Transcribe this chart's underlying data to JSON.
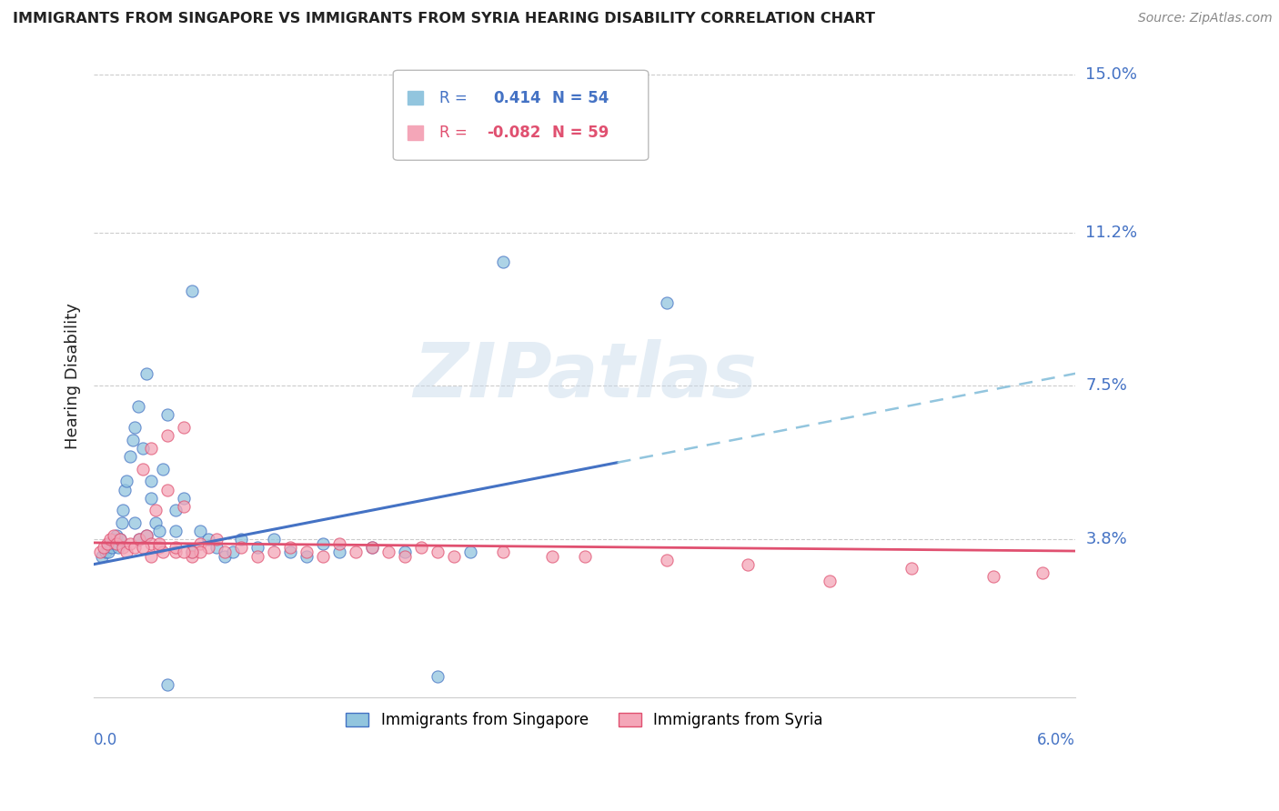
{
  "title": "IMMIGRANTS FROM SINGAPORE VS IMMIGRANTS FROM SYRIA HEARING DISABILITY CORRELATION CHART",
  "source": "Source: ZipAtlas.com",
  "ylabel": "Hearing Disability",
  "xlim": [
    0.0,
    6.0
  ],
  "ylim": [
    0.0,
    15.5
  ],
  "ytick_vals": [
    3.8,
    7.5,
    11.2,
    15.0
  ],
  "ytick_labels": [
    "3.8%",
    "7.5%",
    "11.2%",
    "15.0%"
  ],
  "series1_label": "Immigrants from Singapore",
  "series1_R": "0.414",
  "series1_N": "54",
  "series1_color": "#92c5de",
  "series1_line_color": "#4472c4",
  "series1_dash_color": "#92c5de",
  "series2_label": "Immigrants from Syria",
  "series2_R": "-0.082",
  "series2_N": "59",
  "series2_color": "#f4a6b8",
  "series2_line_color": "#e05070",
  "watermark": "ZIPatlas",
  "background_color": "#ffffff",
  "grid_color": "#cccccc",
  "title_color": "#222222",
  "axis_label_color": "#4472c4",
  "sg_line_x0": 0.0,
  "sg_line_y0": 3.2,
  "sg_line_x1": 6.0,
  "sg_line_y1": 7.8,
  "sg_solid_end_x": 3.2,
  "sy_line_x0": 0.0,
  "sy_line_y0": 3.72,
  "sy_line_x1": 6.0,
  "sy_line_y1": 3.52,
  "singapore_x": [
    0.05,
    0.07,
    0.08,
    0.09,
    0.1,
    0.11,
    0.12,
    0.13,
    0.14,
    0.15,
    0.16,
    0.17,
    0.18,
    0.19,
    0.2,
    0.22,
    0.24,
    0.25,
    0.27,
    0.3,
    0.32,
    0.35,
    0.38,
    0.4,
    0.42,
    0.45,
    0.5,
    0.55,
    0.6,
    0.65,
    0.7,
    0.75,
    0.8,
    0.85,
    0.9,
    1.0,
    1.1,
    1.2,
    1.3,
    1.4,
    1.5,
    1.7,
    1.9,
    2.1,
    2.3,
    0.25,
    0.35,
    0.45,
    0.5,
    0.6,
    2.5,
    3.5,
    0.28,
    0.32
  ],
  "singapore_y": [
    3.4,
    3.5,
    3.6,
    3.5,
    3.7,
    3.6,
    3.8,
    3.7,
    3.9,
    3.6,
    3.8,
    4.2,
    4.5,
    5.0,
    5.2,
    5.8,
    6.2,
    6.5,
    7.0,
    6.0,
    7.8,
    4.8,
    4.2,
    4.0,
    5.5,
    6.8,
    4.5,
    4.8,
    3.5,
    4.0,
    3.8,
    3.6,
    3.4,
    3.5,
    3.8,
    3.6,
    3.8,
    3.5,
    3.4,
    3.7,
    3.5,
    3.6,
    3.5,
    0.5,
    3.5,
    4.2,
    5.2,
    0.3,
    4.0,
    9.8,
    10.5,
    9.5,
    3.8,
    3.9
  ],
  "syria_x": [
    0.04,
    0.06,
    0.08,
    0.1,
    0.12,
    0.14,
    0.16,
    0.18,
    0.2,
    0.22,
    0.25,
    0.28,
    0.3,
    0.32,
    0.35,
    0.38,
    0.4,
    0.42,
    0.45,
    0.5,
    0.55,
    0.6,
    0.65,
    0.7,
    0.75,
    0.8,
    0.9,
    1.0,
    1.1,
    1.2,
    1.3,
    1.4,
    1.5,
    1.6,
    1.7,
    1.8,
    1.9,
    2.0,
    2.1,
    2.2,
    2.5,
    2.8,
    3.0,
    3.5,
    4.0,
    4.5,
    5.0,
    5.5,
    5.8,
    0.35,
    0.45,
    0.55,
    0.65,
    0.35,
    0.5,
    0.6,
    0.4,
    0.3,
    0.55
  ],
  "syria_y": [
    3.5,
    3.6,
    3.7,
    3.8,
    3.9,
    3.7,
    3.8,
    3.6,
    3.5,
    3.7,
    3.6,
    3.8,
    5.5,
    3.9,
    3.7,
    4.5,
    3.6,
    3.5,
    5.0,
    3.5,
    4.6,
    3.4,
    3.7,
    3.6,
    3.8,
    3.5,
    3.6,
    3.4,
    3.5,
    3.6,
    3.5,
    3.4,
    3.7,
    3.5,
    3.6,
    3.5,
    3.4,
    3.6,
    3.5,
    3.4,
    3.5,
    3.4,
    3.4,
    3.3,
    3.2,
    2.8,
    3.1,
    2.9,
    3.0,
    6.0,
    6.3,
    6.5,
    3.5,
    3.4,
    3.6,
    3.5,
    3.7,
    3.6,
    3.5
  ]
}
